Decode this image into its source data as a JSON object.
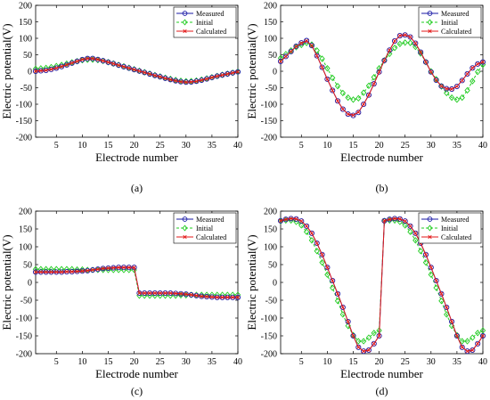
{
  "chart_data": [
    {
      "type": "line",
      "caption": "(a)",
      "xlabel": "Electrode number",
      "ylabel": "Electric potential(V)",
      "xlim": [
        1,
        40
      ],
      "ylim": [
        -200,
        200
      ],
      "xticks": [
        5,
        10,
        15,
        20,
        25,
        30,
        35,
        40
      ],
      "yticks": [
        200,
        150,
        100,
        50,
        0,
        -50,
        -100,
        -150,
        -200
      ],
      "grid": false,
      "legend": "top-right",
      "series": [
        {
          "name": "Measured",
          "color": "#1a1aa6",
          "marker": "circle",
          "values": [
            0,
            1.4,
            2.9,
            5.9,
            9.7,
            14.3,
            19.4,
            24.8,
            30.3,
            35.3,
            38.6,
            38.8,
            35.8,
            31.9,
            27.6,
            23.1,
            18.5,
            14,
            9.5,
            5.1,
            0.7,
            -3.7,
            -8.2,
            -12.6,
            -16.8,
            -21.1,
            -25.1,
            -28.8,
            -31.6,
            -32.9,
            -32.4,
            -30.2,
            -27,
            -23.1,
            -18.9,
            -14.8,
            -11.3,
            -8,
            -4.8,
            -1.7
          ]
        },
        {
          "name": "Initial",
          "color": "#22cc22",
          "marker": "diamond",
          "values": [
            7.5,
            8.6,
            10,
            12.5,
            15.6,
            19.1,
            23,
            26.9,
            30.5,
            33.5,
            35.1,
            35.4,
            34,
            31.2,
            27.6,
            23.6,
            19.3,
            15,
            10.6,
            6.1,
            1.6,
            -2.9,
            -7.2,
            -11.6,
            -15.6,
            -19.6,
            -23.2,
            -26.4,
            -28.9,
            -30.1,
            -29.9,
            -28.2,
            -25.4,
            -21.9,
            -18.2,
            -14.4,
            -10.8,
            -7.5,
            -4.4,
            -1.2
          ]
        },
        {
          "name": "Calculated",
          "color": "#e31a1a",
          "marker": "x",
          "values": [
            0.2,
            1.6,
            3.1,
            6.1,
            9.9,
            14.5,
            19.6,
            25,
            30.5,
            35.4,
            38.5,
            38.6,
            35.7,
            31.8,
            27.5,
            23,
            18.4,
            13.9,
            9.4,
            5,
            0.6,
            -3.8,
            -8.3,
            -12.7,
            -16.9,
            -21.2,
            -25.2,
            -28.9,
            -31.7,
            -33,
            -32.5,
            -30.3,
            -27.1,
            -23.2,
            -19,
            -14.9,
            -11.4,
            -8.1,
            -4.9,
            -1.8
          ]
        }
      ]
    },
    {
      "type": "line",
      "caption": "(b)",
      "xlabel": "Electrode number",
      "ylabel": "Electric potential(V)",
      "xlim": [
        1,
        40
      ],
      "ylim": [
        -200,
        200
      ],
      "xticks": [
        5,
        10,
        15,
        20,
        25,
        30,
        35,
        40
      ],
      "yticks": [
        200,
        150,
        100,
        50,
        0,
        -50,
        -100,
        -150,
        -200
      ],
      "grid": false,
      "legend": "top-right",
      "series": [
        {
          "name": "Measured",
          "color": "#1a1aa6",
          "marker": "circle",
          "values": [
            30,
            45,
            60,
            76,
            86,
            93,
            78,
            47,
            12,
            -24,
            -58,
            -90,
            -115,
            -130,
            -134,
            -125,
            -100,
            -72,
            -38,
            -2,
            33,
            64,
            92,
            108,
            110,
            104,
            85,
            58,
            28,
            -2,
            -27,
            -45,
            -53,
            -54,
            -46,
            -28,
            -8,
            10,
            22,
            28
          ]
        },
        {
          "name": "Initial",
          "color": "#22cc22",
          "marker": "diamond",
          "values": [
            40,
            52,
            63,
            73,
            80,
            86,
            81,
            63,
            38,
            9,
            -20,
            -45,
            -66,
            -80,
            -86,
            -82,
            -65,
            -44,
            -18,
            9,
            33,
            53,
            71,
            83,
            87,
            86,
            74,
            54,
            28,
            0,
            -24,
            -46,
            -66,
            -80,
            -86,
            -80,
            -58,
            -30,
            -2,
            20
          ]
        },
        {
          "name": "Calculated",
          "color": "#e31a1a",
          "marker": "x",
          "values": [
            30,
            45,
            60,
            75,
            85,
            92,
            78,
            47,
            12,
            -24,
            -58,
            -90,
            -115,
            -130,
            -133,
            -124,
            -100,
            -72,
            -38,
            -2,
            33,
            64,
            92,
            108,
            110,
            104,
            85,
            58,
            28,
            -2,
            -27,
            -45,
            -53,
            -54,
            -46,
            -28,
            -8,
            10,
            22,
            28
          ]
        }
      ]
    },
    {
      "type": "line",
      "caption": "(c)",
      "xlabel": "Electrode number",
      "ylabel": "Electric potential(V)",
      "xlim": [
        1,
        40
      ],
      "ylim": [
        -200,
        200
      ],
      "xticks": [
        5,
        10,
        15,
        20,
        25,
        30,
        35,
        40
      ],
      "yticks": [
        200,
        150,
        100,
        50,
        0,
        -50,
        -100,
        -150,
        -200
      ],
      "grid": false,
      "legend": "top-right",
      "series": [
        {
          "name": "Measured",
          "color": "#1a1aa6",
          "marker": "circle",
          "values": [
            29,
            29,
            29,
            29,
            29,
            29,
            30,
            30,
            31,
            32,
            33,
            35,
            37,
            39,
            40,
            41,
            42,
            42,
            42,
            42,
            -30,
            -30,
            -30,
            -30,
            -30,
            -30,
            -30,
            -31,
            -32,
            -33,
            -35,
            -37,
            -39,
            -40,
            -41,
            -42,
            -42,
            -42,
            -42,
            -42
          ]
        },
        {
          "name": "Initial",
          "color": "#22cc22",
          "marker": "diamond",
          "values": [
            37,
            37,
            37,
            37,
            37,
            37,
            37,
            37,
            36,
            36,
            35,
            35,
            35,
            35,
            35,
            35,
            35,
            35,
            35,
            35,
            -37,
            -37,
            -37,
            -37,
            -37,
            -37,
            -37,
            -37,
            -36,
            -36,
            -35,
            -35,
            -35,
            -35,
            -35,
            -35,
            -35,
            -35,
            -35,
            -35
          ]
        },
        {
          "name": "Calculated",
          "color": "#e31a1a",
          "marker": "x",
          "values": [
            29,
            29,
            29,
            29,
            29,
            29,
            30,
            30,
            31,
            32,
            33,
            35,
            37,
            39,
            40,
            41,
            42,
            42,
            42,
            42,
            -30,
            -30,
            -30,
            -30,
            -30,
            -30,
            -30,
            -31,
            -32,
            -33,
            -35,
            -37,
            -39,
            -40,
            -41,
            -42,
            -42,
            -42,
            -42,
            -42
          ]
        }
      ]
    },
    {
      "type": "line",
      "caption": "(d)",
      "xlabel": "Electrode number",
      "ylabel": "Electric potential(V)",
      "xlim": [
        1,
        40
      ],
      "ylim": [
        -200,
        200
      ],
      "xticks": [
        5,
        10,
        15,
        20,
        25,
        30,
        35,
        40
      ],
      "yticks": [
        200,
        150,
        100,
        50,
        0,
        -50,
        -100,
        -150,
        -200
      ],
      "grid": false,
      "legend": "top-right",
      "series": [
        {
          "name": "Measured",
          "color": "#1a1aa6",
          "marker": "circle",
          "values": [
            173,
            177,
            179,
            178,
            172,
            158,
            138,
            110,
            78,
            42,
            5,
            -32,
            -70,
            -110,
            -150,
            -182,
            -193,
            -190,
            -172,
            -150,
            173,
            177,
            179,
            178,
            172,
            158,
            138,
            110,
            78,
            42,
            5,
            -32,
            -70,
            -110,
            -150,
            -182,
            -193,
            -190,
            -172,
            -150
          ]
        },
        {
          "name": "Initial",
          "color": "#22cc22",
          "marker": "diamond",
          "values": [
            172,
            174,
            174,
            170,
            160,
            142,
            118,
            88,
            56,
            22,
            -15,
            -52,
            -90,
            -122,
            -148,
            -165,
            -165,
            -155,
            -142,
            -135,
            172,
            174,
            174,
            170,
            160,
            142,
            118,
            88,
            56,
            22,
            -15,
            -52,
            -90,
            -122,
            -148,
            -165,
            -165,
            -155,
            -142,
            -135
          ]
        },
        {
          "name": "Calculated",
          "color": "#e31a1a",
          "marker": "x",
          "values": [
            173,
            177,
            179,
            178,
            172,
            158,
            138,
            110,
            78,
            42,
            5,
            -32,
            -70,
            -110,
            -150,
            -182,
            -193,
            -190,
            -172,
            -150,
            173,
            177,
            179,
            178,
            172,
            158,
            138,
            110,
            78,
            42,
            5,
            -32,
            -70,
            -110,
            -150,
            -182,
            -193,
            -190,
            -172,
            -150
          ]
        }
      ]
    }
  ]
}
